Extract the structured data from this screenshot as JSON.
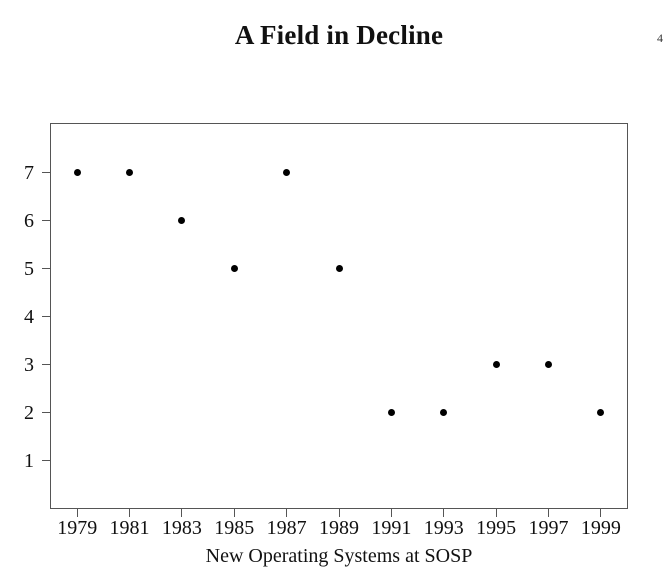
{
  "page": {
    "title": "A Field in Decline",
    "page_number": "4"
  },
  "chart_data": {
    "type": "scatter",
    "title": "A Field in Decline",
    "xlabel": "New Operating Systems at SOSP",
    "ylabel": "",
    "x": [
      1979,
      1981,
      1983,
      1985,
      1987,
      1989,
      1991,
      1993,
      1995,
      1997,
      1999
    ],
    "y": [
      7,
      7,
      6,
      5,
      7,
      5,
      2,
      2,
      3,
      3,
      2
    ],
    "xlim": [
      1978,
      2000
    ],
    "ylim": [
      0,
      8
    ],
    "x_ticks": [
      1979,
      1981,
      1983,
      1985,
      1987,
      1989,
      1991,
      1993,
      1995,
      1997,
      1999
    ],
    "y_ticks": [
      1,
      2,
      3,
      4,
      5,
      6,
      7
    ],
    "marker_color": "#000000",
    "axis_color": "#555555",
    "grid": false,
    "legend": null
  }
}
